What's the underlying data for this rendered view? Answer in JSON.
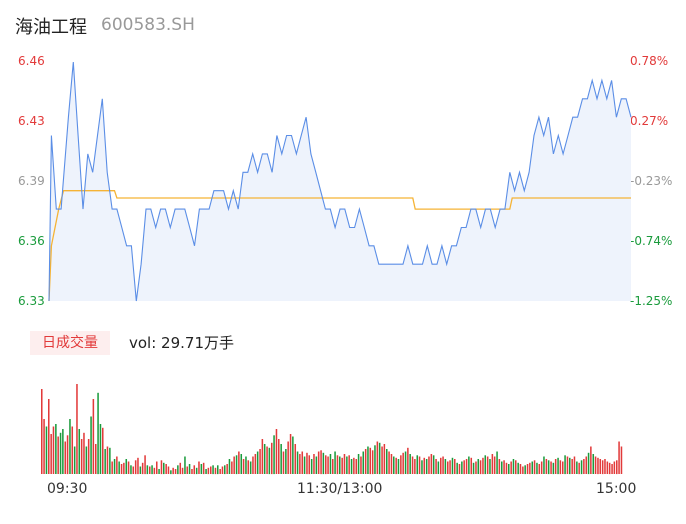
{
  "header": {
    "name": "海油工程",
    "code": "600583.SH"
  },
  "volume_panel": {
    "tab_label": "日成交量",
    "vol_text": "vol: 29.71万手"
  },
  "colors": {
    "price_line": "#5b8ee6",
    "avg_line": "#f5b335",
    "area_fill": "#eef3fc",
    "up": "#e23a3a",
    "down": "#1a9b3c",
    "axis_label_neutral": "#999999"
  },
  "chart_data": [
    {
      "type": "line",
      "ylim": [
        6.33,
        6.46
      ],
      "y_ticks_left": [
        "6.46",
        "6.43",
        "6.39",
        "6.36",
        "6.33"
      ],
      "y_ticks_right": [
        "0.78%",
        "0.27%",
        "-0.23%",
        "-0.74%",
        "-1.25%"
      ],
      "y_tick_colors": [
        "up",
        "up",
        "neutral",
        "down",
        "down"
      ],
      "x_ticks": [
        "09:30",
        "11:30/13:00",
        "15:00"
      ],
      "series": [
        {
          "role": "price",
          "x_range": [
            0,
            240
          ],
          "keypoints": [
            [
              0,
              6.33
            ],
            [
              1,
              6.42
            ],
            [
              3,
              6.38
            ],
            [
              5,
              6.38
            ],
            [
              8,
              6.43
            ],
            [
              10,
              6.46
            ],
            [
              12,
              6.42
            ],
            [
              14,
              6.38
            ],
            [
              16,
              6.41
            ],
            [
              18,
              6.4
            ],
            [
              20,
              6.42
            ],
            [
              22,
              6.44
            ],
            [
              24,
              6.4
            ],
            [
              26,
              6.38
            ],
            [
              28,
              6.38
            ],
            [
              30,
              6.37
            ],
            [
              32,
              6.36
            ],
            [
              34,
              6.36
            ],
            [
              36,
              6.33
            ],
            [
              38,
              6.35
            ],
            [
              40,
              6.38
            ],
            [
              42,
              6.38
            ],
            [
              44,
              6.37
            ],
            [
              46,
              6.38
            ],
            [
              48,
              6.38
            ],
            [
              50,
              6.37
            ],
            [
              52,
              6.38
            ],
            [
              56,
              6.38
            ],
            [
              58,
              6.37
            ],
            [
              60,
              6.36
            ],
            [
              62,
              6.38
            ],
            [
              66,
              6.38
            ],
            [
              68,
              6.39
            ],
            [
              72,
              6.39
            ],
            [
              74,
              6.38
            ],
            [
              76,
              6.39
            ],
            [
              78,
              6.38
            ],
            [
              80,
              6.4
            ],
            [
              82,
              6.4
            ],
            [
              84,
              6.41
            ],
            [
              86,
              6.4
            ],
            [
              88,
              6.41
            ],
            [
              90,
              6.41
            ],
            [
              92,
              6.4
            ],
            [
              94,
              6.42
            ],
            [
              96,
              6.41
            ],
            [
              98,
              6.42
            ],
            [
              100,
              6.42
            ],
            [
              102,
              6.41
            ],
            [
              104,
              6.42
            ],
            [
              106,
              6.43
            ],
            [
              108,
              6.41
            ],
            [
              110,
              6.4
            ],
            [
              112,
              6.39
            ],
            [
              114,
              6.38
            ],
            [
              116,
              6.38
            ],
            [
              118,
              6.37
            ],
            [
              120,
              6.38
            ],
            [
              122,
              6.38
            ],
            [
              124,
              6.37
            ],
            [
              126,
              6.37
            ],
            [
              128,
              6.38
            ],
            [
              130,
              6.37
            ],
            [
              132,
              6.36
            ],
            [
              134,
              6.36
            ],
            [
              136,
              6.35
            ],
            [
              140,
              6.35
            ],
            [
              144,
              6.35
            ],
            [
              146,
              6.35
            ],
            [
              148,
              6.36
            ],
            [
              150,
              6.35
            ],
            [
              154,
              6.35
            ],
            [
              156,
              6.36
            ],
            [
              158,
              6.35
            ],
            [
              160,
              6.35
            ],
            [
              162,
              6.36
            ],
            [
              164,
              6.35
            ],
            [
              166,
              6.36
            ],
            [
              168,
              6.36
            ],
            [
              170,
              6.37
            ],
            [
              172,
              6.37
            ],
            [
              174,
              6.38
            ],
            [
              176,
              6.38
            ],
            [
              178,
              6.37
            ],
            [
              180,
              6.38
            ],
            [
              182,
              6.38
            ],
            [
              184,
              6.37
            ],
            [
              186,
              6.38
            ],
            [
              188,
              6.38
            ],
            [
              190,
              6.4
            ],
            [
              192,
              6.39
            ],
            [
              194,
              6.4
            ],
            [
              196,
              6.39
            ],
            [
              198,
              6.4
            ],
            [
              200,
              6.42
            ],
            [
              202,
              6.43
            ],
            [
              204,
              6.42
            ],
            [
              206,
              6.43
            ],
            [
              208,
              6.41
            ],
            [
              210,
              6.42
            ],
            [
              212,
              6.41
            ],
            [
              214,
              6.42
            ],
            [
              216,
              6.43
            ],
            [
              218,
              6.43
            ],
            [
              220,
              6.44
            ],
            [
              222,
              6.44
            ],
            [
              224,
              6.45
            ],
            [
              226,
              6.44
            ],
            [
              228,
              6.45
            ],
            [
              230,
              6.44
            ],
            [
              232,
              6.45
            ],
            [
              234,
              6.43
            ],
            [
              236,
              6.44
            ],
            [
              238,
              6.44
            ],
            [
              240,
              6.43
            ]
          ]
        },
        {
          "role": "average",
          "x_range": [
            0,
            240
          ],
          "keypoints": [
            [
              0,
              6.33
            ],
            [
              1,
              6.36
            ],
            [
              4,
              6.38
            ],
            [
              6,
              6.39
            ],
            [
              26,
              6.39
            ],
            [
              27,
              6.39
            ],
            [
              28,
              6.386
            ],
            [
              150,
              6.386
            ],
            [
              151,
              6.38
            ],
            [
              190,
              6.38
            ],
            [
              191,
              6.386
            ],
            [
              240,
              6.386
            ]
          ]
        }
      ]
    },
    {
      "type": "bar",
      "series": [
        {
          "name": "volume",
          "x_range": [
            0,
            240
          ],
          "values": [
            68,
            44,
            38,
            60,
            32,
            38,
            40,
            30,
            33,
            36,
            26,
            31,
            44,
            38,
            22,
            72,
            36,
            28,
            33,
            22,
            28,
            46,
            60,
            24,
            65,
            40,
            37,
            20,
            22,
            21,
            10,
            12,
            14,
            10,
            8,
            9,
            12,
            10,
            7,
            6,
            11,
            13,
            6,
            9,
            15,
            7,
            6,
            7,
            5,
            10,
            4,
            11,
            9,
            8,
            6,
            3,
            5,
            4,
            7,
            9,
            5,
            14,
            6,
            8,
            4,
            7,
            5,
            10,
            8,
            9,
            4,
            5,
            6,
            7,
            5,
            7,
            4,
            6,
            7,
            8,
            12,
            10,
            14,
            15,
            18,
            16,
            12,
            14,
            11,
            10,
            14,
            16,
            18,
            20,
            28,
            24,
            22,
            21,
            25,
            31,
            36,
            28,
            24,
            18,
            20,
            26,
            32,
            30,
            24,
            18,
            16,
            18,
            14,
            17,
            15,
            12,
            16,
            14,
            18,
            19,
            17,
            15,
            14,
            16,
            12,
            18,
            15,
            14,
            13,
            16,
            14,
            15,
            12,
            13,
            12,
            16,
            14,
            18,
            20,
            22,
            21,
            19,
            23,
            26,
            25,
            22,
            24,
            20,
            18,
            16,
            14,
            13,
            12,
            15,
            17,
            18,
            21,
            16,
            14,
            12,
            15,
            14,
            11,
            13,
            12,
            14,
            16,
            15,
            12,
            10,
            13,
            14,
            12,
            10,
            11,
            13,
            12,
            9,
            8,
            10,
            11,
            12,
            14,
            13,
            9,
            10,
            12,
            11,
            13,
            15,
            14,
            12,
            16,
            14,
            18,
            12,
            10,
            11,
            9,
            8,
            10,
            12,
            11,
            9,
            8,
            6,
            7,
            8,
            9,
            10,
            11,
            9,
            8,
            10,
            14,
            12,
            11,
            10,
            9,
            12,
            13,
            11,
            10,
            15,
            14,
            13,
            12,
            14,
            10,
            9,
            11,
            12,
            14,
            17,
            22,
            16,
            14,
            13,
            12,
            11,
            12,
            10,
            9,
            8,
            10,
            11,
            26,
            22
          ],
          "colors": [
            "up",
            "up",
            "down",
            "up",
            "up",
            "up",
            "down",
            "up",
            "down",
            "down",
            "up",
            "up",
            "down",
            "up",
            "down",
            "up",
            "down",
            "up",
            "up",
            "down",
            "up",
            "down",
            "up",
            "up",
            "down",
            "down",
            "up",
            "down",
            "up",
            "down",
            "up",
            "down",
            "up",
            "down",
            "up",
            "up",
            "down",
            "up",
            "down",
            "up",
            "up",
            "up",
            "down",
            "up",
            "up",
            "down",
            "up",
            "down",
            "up",
            "up",
            "down",
            "up",
            "down",
            "up",
            "up",
            "down",
            "up",
            "up",
            "down",
            "up",
            "up",
            "down",
            "up",
            "down",
            "up",
            "up",
            "down",
            "up",
            "down",
            "up",
            "down",
            "up",
            "up",
            "down",
            "up",
            "down",
            "up",
            "up",
            "down",
            "up",
            "down",
            "up",
            "up",
            "down",
            "up",
            "down",
            "up",
            "down",
            "up",
            "down",
            "up",
            "up",
            "down",
            "up",
            "up",
            "down",
            "up",
            "down",
            "up",
            "down",
            "up",
            "up",
            "down",
            "up",
            "down",
            "up",
            "up",
            "down",
            "up",
            "down",
            "up",
            "up",
            "down",
            "up",
            "up",
            "down",
            "up",
            "down",
            "up",
            "up",
            "down",
            "up",
            "up",
            "down",
            "up",
            "down",
            "up",
            "down",
            "up",
            "up",
            "down",
            "up",
            "down",
            "up",
            "up",
            "down",
            "up",
            "down",
            "up",
            "down",
            "up",
            "up",
            "down",
            "up",
            "down",
            "up",
            "up",
            "down",
            "up",
            "up",
            "down",
            "up",
            "down",
            "up",
            "up",
            "down",
            "up",
            "down",
            "up",
            "up",
            "down",
            "up",
            "down",
            "up",
            "down",
            "up",
            "up",
            "down",
            "up",
            "down",
            "up",
            "up",
            "down",
            "up",
            "up",
            "down",
            "up",
            "down",
            "up",
            "down",
            "up",
            "up",
            "down",
            "up",
            "down",
            "up",
            "down",
            "up",
            "up",
            "down",
            "up",
            "down",
            "up",
            "up",
            "down",
            "up",
            "down",
            "up",
            "up",
            "down",
            "up",
            "down",
            "up",
            "down",
            "up",
            "up",
            "down",
            "up",
            "up",
            "down",
            "up",
            "down",
            "up",
            "up",
            "down",
            "up",
            "down",
            "up",
            "down",
            "up",
            "down",
            "up",
            "up",
            "down",
            "up",
            "down",
            "up",
            "up",
            "down",
            "up",
            "down",
            "up",
            "up",
            "down",
            "up",
            "down",
            "up",
            "up",
            "up"
          ]
        }
      ]
    }
  ]
}
